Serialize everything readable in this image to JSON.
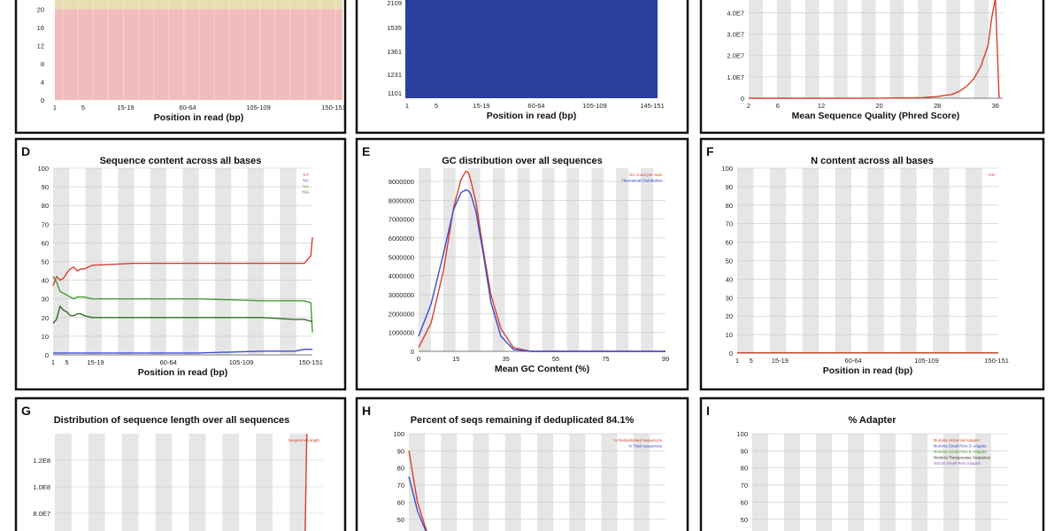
{
  "chart_data": [
    {
      "panel": "",
      "type": "bar",
      "title": "",
      "xlabel": "Position in read (bp)",
      "ylabel": "",
      "x_ticks": [
        "1",
        "5",
        "15-19",
        "60-64",
        "105-109",
        "150-151"
      ],
      "y_ticks": [
        0,
        4,
        8,
        12,
        16,
        20
      ],
      "ylim": [
        0,
        22
      ],
      "bands": [
        {
          "name": "poor",
          "from": 0,
          "to": 20,
          "color": "#f1bcbc"
        },
        {
          "name": "reasonable",
          "from": 20,
          "to": 28,
          "color": "#e7dfb3"
        }
      ]
    },
    {
      "panel": "",
      "type": "heatmap",
      "title": "",
      "xlabel": "Position in read (bp)",
      "ylabel": "",
      "x_ticks": [
        "1",
        "5",
        "15-19",
        "60-64",
        "105-109",
        "145-151"
      ],
      "y_ticks": [
        "2109",
        "1535",
        "1361",
        "1231",
        "1101"
      ],
      "fill_color": "#2b3f9e"
    },
    {
      "panel": "",
      "type": "line",
      "title": "",
      "xlabel": "Mean Sequence Quality (Phred Score)",
      "ylabel": "",
      "x_ticks": [
        2,
        6,
        12,
        20,
        28,
        36
      ],
      "xlim": [
        2,
        37
      ],
      "y_ticks": [
        "0",
        "1.0E7",
        "2.0E7",
        "3.0E7",
        "4.0E7"
      ],
      "ylim": [
        0,
        46000000
      ],
      "series": [
        {
          "color": "#d6402a",
          "x": [
            2,
            10,
            20,
            26,
            28,
            30,
            31,
            32,
            33,
            34,
            35,
            35.5,
            36,
            36.5
          ],
          "y": [
            0,
            0,
            50000,
            300000,
            800000,
            1800000,
            3200000,
            5500000,
            9000000,
            15000000,
            25000000,
            38000000,
            50000000,
            0
          ]
        }
      ]
    },
    {
      "panel": "D",
      "type": "line",
      "title": "Sequence content across all bases",
      "xlabel": "Position in read (bp)",
      "ylabel": "",
      "x_ticks": [
        "1",
        "5",
        "15-19",
        "60-64",
        "105-109",
        "150-151"
      ],
      "y_ticks": [
        0,
        10,
        20,
        30,
        40,
        50,
        60,
        70,
        80,
        90,
        100
      ],
      "ylim": [
        0,
        100
      ],
      "legend": [
        "%T",
        "%C",
        "%A",
        "%G"
      ],
      "series": [
        {
          "color": "#d6402a",
          "x": [
            1,
            2,
            3,
            4,
            5,
            6,
            7,
            8,
            9,
            10,
            15,
            40,
            80,
            120,
            140,
            146,
            150,
            151
          ],
          "y": [
            37,
            42,
            40,
            41,
            44,
            46,
            47,
            45,
            46,
            46,
            48,
            49,
            49,
            49,
            49,
            49,
            53,
            63
          ]
        },
        {
          "color": "#3a4bd1",
          "x": [
            1,
            2,
            3,
            4,
            5,
            6,
            7,
            8,
            9,
            10,
            15,
            40,
            80,
            120,
            140,
            146,
            150,
            151
          ],
          "y": [
            1,
            1,
            1,
            1,
            1,
            1,
            1,
            1,
            1,
            1,
            1,
            1,
            1,
            2,
            2,
            3,
            3,
            3
          ]
        },
        {
          "color": "#4a9a34",
          "x": [
            1,
            2,
            3,
            4,
            5,
            6,
            7,
            8,
            9,
            10,
            15,
            40,
            80,
            120,
            140,
            146,
            150,
            151
          ],
          "y": [
            42,
            39,
            34,
            33,
            32,
            31,
            30,
            31,
            31,
            31,
            30,
            30,
            30,
            29,
            29,
            29,
            28,
            12
          ]
        },
        {
          "color": "#2e6e22",
          "x": [
            1,
            2,
            3,
            4,
            5,
            6,
            7,
            8,
            9,
            10,
            15,
            40,
            80,
            120,
            140,
            146,
            150,
            151
          ],
          "y": [
            17,
            19,
            26,
            24,
            23,
            21,
            21,
            22,
            22,
            21,
            20,
            20,
            20,
            20,
            19,
            19,
            18,
            18
          ]
        }
      ]
    },
    {
      "panel": "E",
      "type": "line",
      "title": "GC distribution over all sequences",
      "xlabel": "Mean GC Content (%)",
      "ylabel": "",
      "x_ticks": [
        0,
        15,
        35,
        55,
        75,
        99
      ],
      "xlim": [
        0,
        99
      ],
      "y_ticks": [
        "0",
        "1000000",
        "2000000",
        "3000000",
        "4000000",
        "5000000",
        "6000000",
        "7000000",
        "8000000",
        "9000000"
      ],
      "ylim": [
        0,
        9700000
      ],
      "legend": [
        "GC count per read",
        "Theoretical Distribution"
      ],
      "series": [
        {
          "name": "GC count per read",
          "color": "#d6402a",
          "x": [
            0,
            5,
            10,
            14,
            17,
            19,
            20,
            21,
            23,
            26,
            29,
            33,
            38,
            45,
            55,
            99
          ],
          "y": [
            200000,
            1500000,
            4300000,
            7600000,
            9100000,
            9550000,
            9450000,
            9000000,
            7900000,
            5300000,
            3000000,
            1200000,
            200000,
            0,
            0,
            0
          ]
        },
        {
          "name": "Theoretical Distribution",
          "color": "#3a4bd1",
          "x": [
            0,
            5,
            10,
            14,
            17,
            19,
            20,
            21,
            23,
            26,
            29,
            33,
            38,
            45,
            55,
            99
          ],
          "y": [
            800000,
            2500000,
            5200000,
            7500000,
            8400000,
            8550000,
            8500000,
            8300000,
            7400000,
            5100000,
            2600000,
            800000,
            100000,
            0,
            0,
            0
          ]
        }
      ]
    },
    {
      "panel": "F",
      "type": "line",
      "title": "N content across all bases",
      "xlabel": "Position in read (bp)",
      "ylabel": "",
      "x_ticks": [
        "1",
        "5",
        "15-19",
        "60-64",
        "105-109",
        "150-151"
      ],
      "y_ticks": [
        0,
        10,
        20,
        30,
        40,
        50,
        60,
        70,
        80,
        90,
        100
      ],
      "ylim": [
        0,
        100
      ],
      "legend": [
        "%N"
      ],
      "series": [
        {
          "color": "#d6402a",
          "x": [
            1,
            151
          ],
          "y": [
            0.2,
            0.2
          ]
        }
      ]
    },
    {
      "panel": "G",
      "type": "line",
      "title": "Distribution of sequence length over all sequences",
      "xlabel": "",
      "ylabel": "",
      "x_ticks": [],
      "y_ticks": [
        "8.0E7",
        "1.0E8",
        "1.2E8"
      ],
      "ylim": [
        60000000,
        140000000
      ],
      "legend": [
        "Sequence Length"
      ],
      "series": [
        {
          "color": "#d6402a",
          "x": [
            139,
            140,
            141
          ],
          "y": [
            60000000,
            62000000,
            140000000
          ]
        }
      ]
    },
    {
      "panel": "H",
      "type": "line",
      "title": "Percent of seqs remaining if deduplicated 84.1%",
      "xlabel": "",
      "ylabel": "",
      "x_ticks": [],
      "y_ticks": [
        40,
        50,
        60,
        70,
        80,
        90,
        100
      ],
      "ylim": [
        38,
        100
      ],
      "legend": [
        "% Deduplicated sequences",
        "% Total sequences"
      ],
      "series": [
        {
          "name": "% Deduplicated sequences",
          "color": "#d6402a",
          "x": [
            1,
            1.5,
            2.2
          ],
          "y": [
            90,
            60,
            38
          ]
        },
        {
          "name": "% Total sequences",
          "color": "#3a4bd1",
          "x": [
            1,
            1.5,
            2.2
          ],
          "y": [
            75,
            55,
            38
          ]
        }
      ]
    },
    {
      "panel": "I",
      "type": "line",
      "title": "% Adapter",
      "xlabel": "",
      "ylabel": "",
      "x_ticks": [],
      "y_ticks": [
        40,
        50,
        60,
        70,
        80,
        90,
        100
      ],
      "ylim": [
        38,
        100
      ],
      "legend": [
        "Illumina Universal Adapter",
        "Illumina Small RNA 3' Adapter",
        "Illumina Small RNA 5' Adapter",
        "Nextera Transposase Sequence",
        "SOLID Small RNA Adapter"
      ],
      "legend_colors": [
        "#d6402a",
        "#3a4bd1",
        "#4a9a34",
        "#2e2e2e",
        "#9a4fc8"
      ],
      "series": []
    }
  ]
}
